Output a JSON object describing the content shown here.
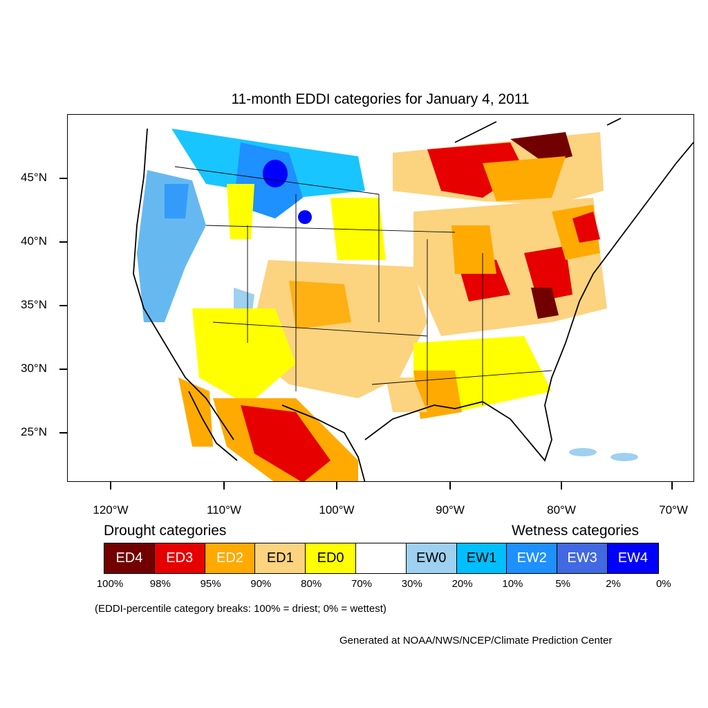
{
  "title": "11-month EDDI categories for January 4, 2011",
  "map": {
    "y_ticks": [
      "45°N",
      "40°N",
      "35°N",
      "30°N",
      "25°N"
    ],
    "x_ticks": [
      "120°W",
      "110°W",
      "100°W",
      "90°W",
      "80°W",
      "70°W"
    ]
  },
  "legend": {
    "drought_heading": "Drought categories",
    "wetness_heading": "Wetness categories",
    "categories": [
      {
        "label": "ED4",
        "color": "#730000",
        "text_color": "#ffffff"
      },
      {
        "label": "ED3",
        "color": "#e60000",
        "text_color": "#ffffff"
      },
      {
        "label": "ED2",
        "color": "#ffaa00",
        "text_color": "#ffffff"
      },
      {
        "label": "ED1",
        "color": "#fcd37f",
        "text_color": "#000000"
      },
      {
        "label": "ED0",
        "color": "#ffff00",
        "text_color": "#000000"
      },
      {
        "label": "",
        "color": "#ffffff",
        "text_color": "#000000"
      },
      {
        "label": "EW0",
        "color": "#9ed0f0",
        "text_color": "#000000"
      },
      {
        "label": "EW1",
        "color": "#00bfff",
        "text_color": "#000000"
      },
      {
        "label": "EW2",
        "color": "#1e90ff",
        "text_color": "#ffffff"
      },
      {
        "label": "EW3",
        "color": "#4169e1",
        "text_color": "#ffffff"
      },
      {
        "label": "EW4",
        "color": "#0000ff",
        "text_color": "#ffffff"
      }
    ],
    "breaks": [
      "100%",
      "98%",
      "95%",
      "90%",
      "80%",
      "70%",
      "30%",
      "20%",
      "10%",
      "5%",
      "2%",
      "0%"
    ]
  },
  "note": "(EDDI-percentile category breaks: 100% = driest; 0% = wettest)",
  "credit": "Generated at NOAA/NWS/NCEP/Climate Prediction Center"
}
